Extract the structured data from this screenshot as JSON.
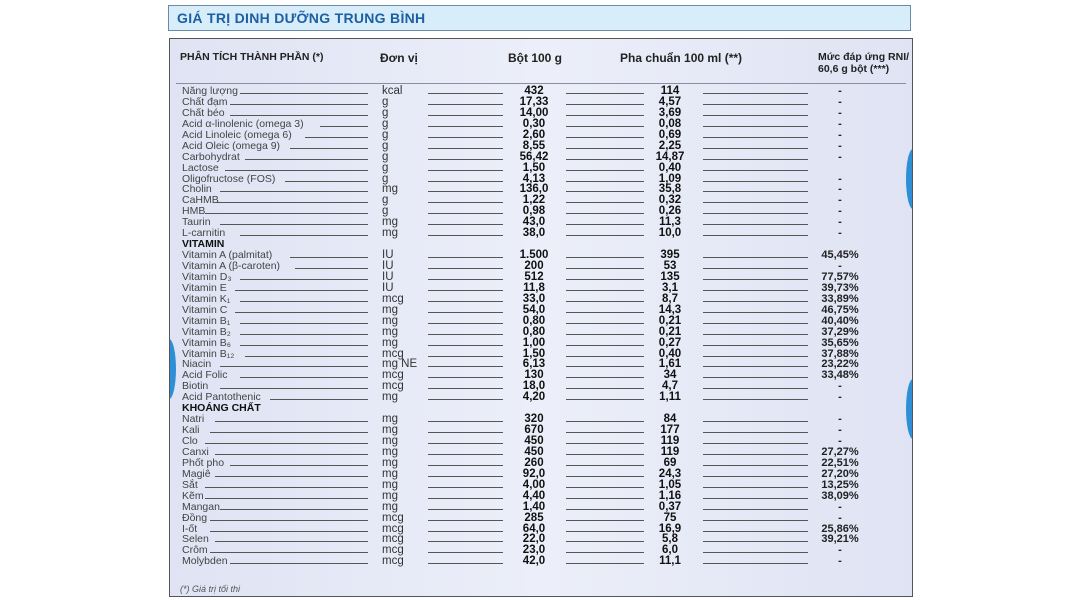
{
  "title": "GIÁ TRỊ DINH DƯỠNG TRUNG BÌNH",
  "header": {
    "component": "PHÂN TÍCH THÀNH PHẦN (*)",
    "unit": "Đơn vị",
    "powder": "Bột 100 g",
    "prepared": "Pha chuẩn 100 ml (**)",
    "rni_line1": "Mức đáp ứng RNI/",
    "rni_line2": "60,6 g bột (***)"
  },
  "sections": [
    {
      "label": "",
      "rows": [
        [
          "Năng lượng",
          "kcal",
          "432",
          "114",
          "-"
        ],
        [
          "Chất đạm",
          "g",
          "17,33",
          "4,57",
          "-"
        ],
        [
          "Chất béo",
          "g",
          "14,00",
          "3,69",
          "-"
        ],
        [
          "Acid α-linolenic (omega 3)",
          "g",
          "0,30",
          "0,08",
          "-"
        ],
        [
          "Acid Linoleic (omega 6)",
          "g",
          "2,60",
          "0,69",
          "-"
        ],
        [
          "Acid Oleic (omega 9)",
          "g",
          "8,55",
          "2,25",
          "-"
        ],
        [
          "Carbohydrat",
          "g",
          "56,42",
          "14,87",
          "-"
        ],
        [
          "Lactose",
          "g",
          "1,50",
          "0,40",
          ""
        ],
        [
          "Oligofructose (FOS)",
          "g",
          "4,13",
          "1,09",
          "-"
        ],
        [
          "Cholin",
          "mg",
          "136,0",
          "35,8",
          "-"
        ],
        [
          "CaHMB",
          "g",
          "1,22",
          "0,32",
          "-"
        ],
        [
          "HMB",
          "g",
          "0,98",
          "0,26",
          "-"
        ],
        [
          "Taurin",
          "mg",
          "43,0",
          "11,3",
          "-"
        ],
        [
          "L-carnitin",
          "mg",
          "38,0",
          "10,0",
          "-"
        ]
      ]
    },
    {
      "label": "VITAMIN",
      "rows": [
        [
          "Vitamin A (palmitat)",
          "IU",
          "1.500",
          "395",
          "45,45%"
        ],
        [
          "Vitamin A (β-caroten)",
          "IU",
          "200",
          "53",
          "-"
        ],
        [
          "Vitamin D₃",
          "IU",
          "512",
          "135",
          "77,57%"
        ],
        [
          "Vitamin E",
          "IU",
          "11,8",
          "3,1",
          "39,73%"
        ],
        [
          "Vitamin K₁",
          "mcg",
          "33,0",
          "8,7",
          "33,89%"
        ],
        [
          "Vitamin C",
          "mg",
          "54,0",
          "14,3",
          "46,75%"
        ],
        [
          "Vitamin B₁",
          "mg",
          "0,80",
          "0,21",
          "40,40%"
        ],
        [
          "Vitamin B₂",
          "mg",
          "0,80",
          "0,21",
          "37,29%"
        ],
        [
          "Vitamin B₆",
          "mg",
          "1,00",
          "0,27",
          "35,65%"
        ],
        [
          "Vitamin B₁₂",
          "mcg",
          "1,50",
          "0,40",
          "37,88%"
        ],
        [
          "Niacin",
          "mg NE",
          "6,13",
          "1,61",
          "23,22%"
        ],
        [
          "Acid Folic",
          "mcg",
          "130",
          "34",
          "33,48%"
        ],
        [
          "Biotin",
          "mcg",
          "18,0",
          "4,7",
          "-"
        ],
        [
          "Acid Pantothenic",
          "mg",
          "4,20",
          "1,11",
          "-"
        ]
      ]
    },
    {
      "label": "KHOÁNG CHẤT",
      "rows": [
        [
          "Natri",
          "mg",
          "320",
          "84",
          "-"
        ],
        [
          "Kali",
          "mg",
          "670",
          "177",
          "-"
        ],
        [
          "Clo",
          "mg",
          "450",
          "119",
          "-"
        ],
        [
          "Canxi",
          "mg",
          "450",
          "119",
          "27,27%"
        ],
        [
          "Phốt pho",
          "mg",
          "260",
          "69",
          "22,51%"
        ],
        [
          "Magiê",
          "mg",
          "92,0",
          "24,3",
          "27,20%"
        ],
        [
          "Sắt",
          "mg",
          "4,00",
          "1,05",
          "13,25%"
        ],
        [
          "Kẽm",
          "mg",
          "4,40",
          "1,16",
          "38,09%"
        ],
        [
          "Mangan",
          "mg",
          "1,40",
          "0,37",
          "-"
        ],
        [
          "Đồng",
          "mcg",
          "285",
          "75",
          "-"
        ],
        [
          "I-ốt",
          "mcg",
          "64,0",
          "16,9",
          "25,86%"
        ],
        [
          "Selen",
          "mcg",
          "22,0",
          "5,8",
          "39,21%"
        ],
        [
          "Crôm",
          "mcg",
          "23,0",
          "6,0",
          "-"
        ],
        [
          "Molybden",
          "mcg",
          "42,0",
          "11,1",
          "-"
        ]
      ]
    }
  ],
  "footnote": "(*) Giá trị tối thi"
}
